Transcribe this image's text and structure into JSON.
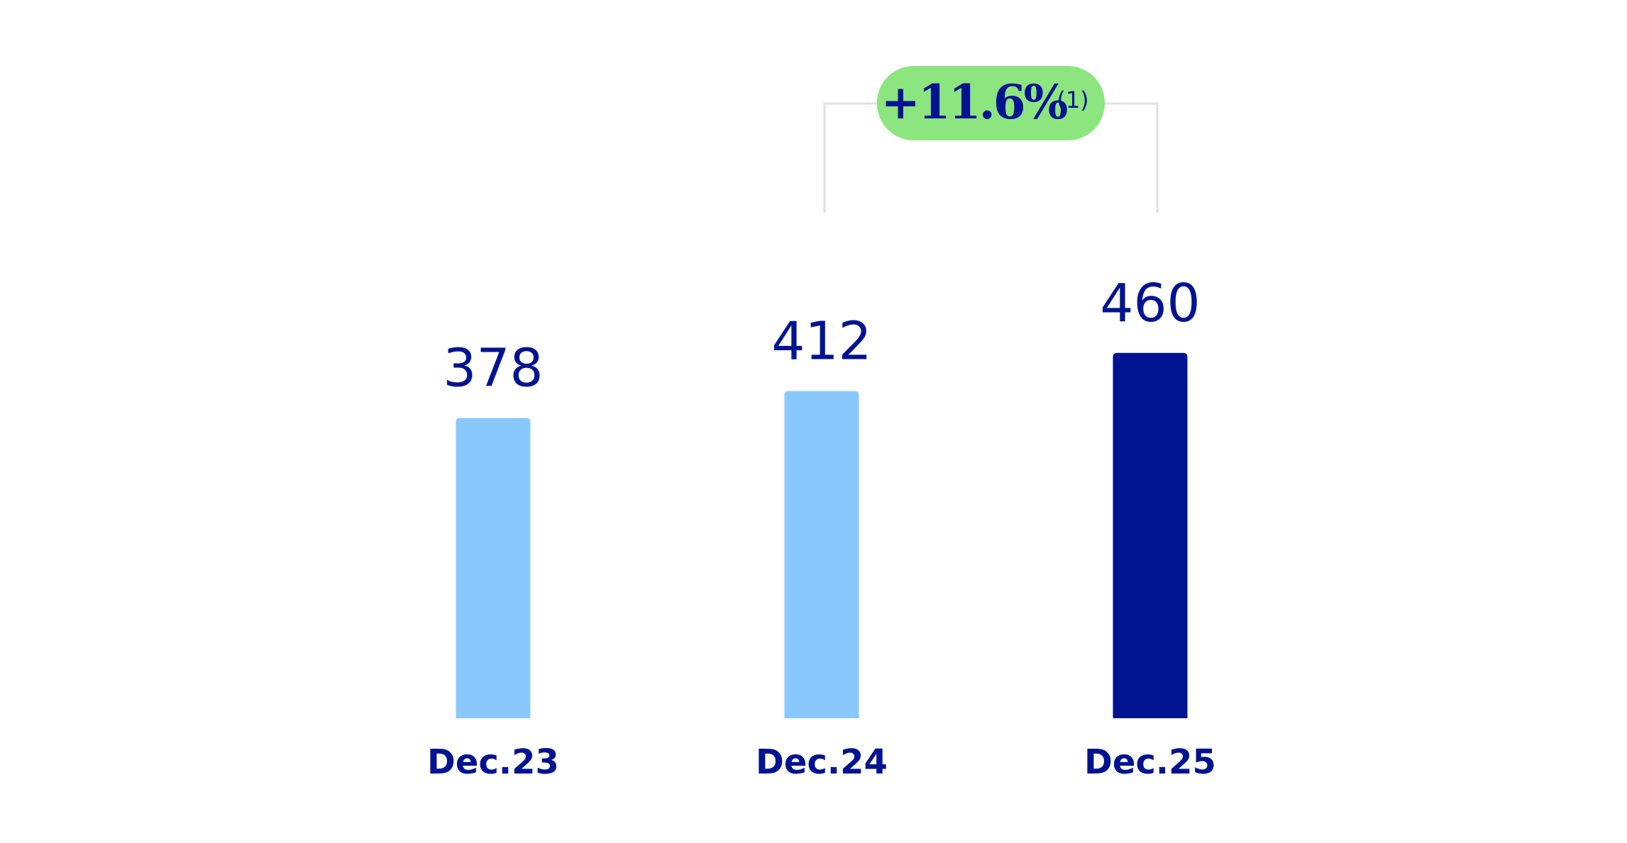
{
  "chart_data": {
    "type": "bar",
    "categories": [
      "Dec.23",
      "Dec.24",
      "Dec.25"
    ],
    "values": [
      378,
      412,
      460
    ],
    "colors": [
      "#89c8fd",
      "#89c8fd",
      "#001391"
    ],
    "annotation": {
      "text": "+11.6%",
      "note": "(1)"
    }
  }
}
